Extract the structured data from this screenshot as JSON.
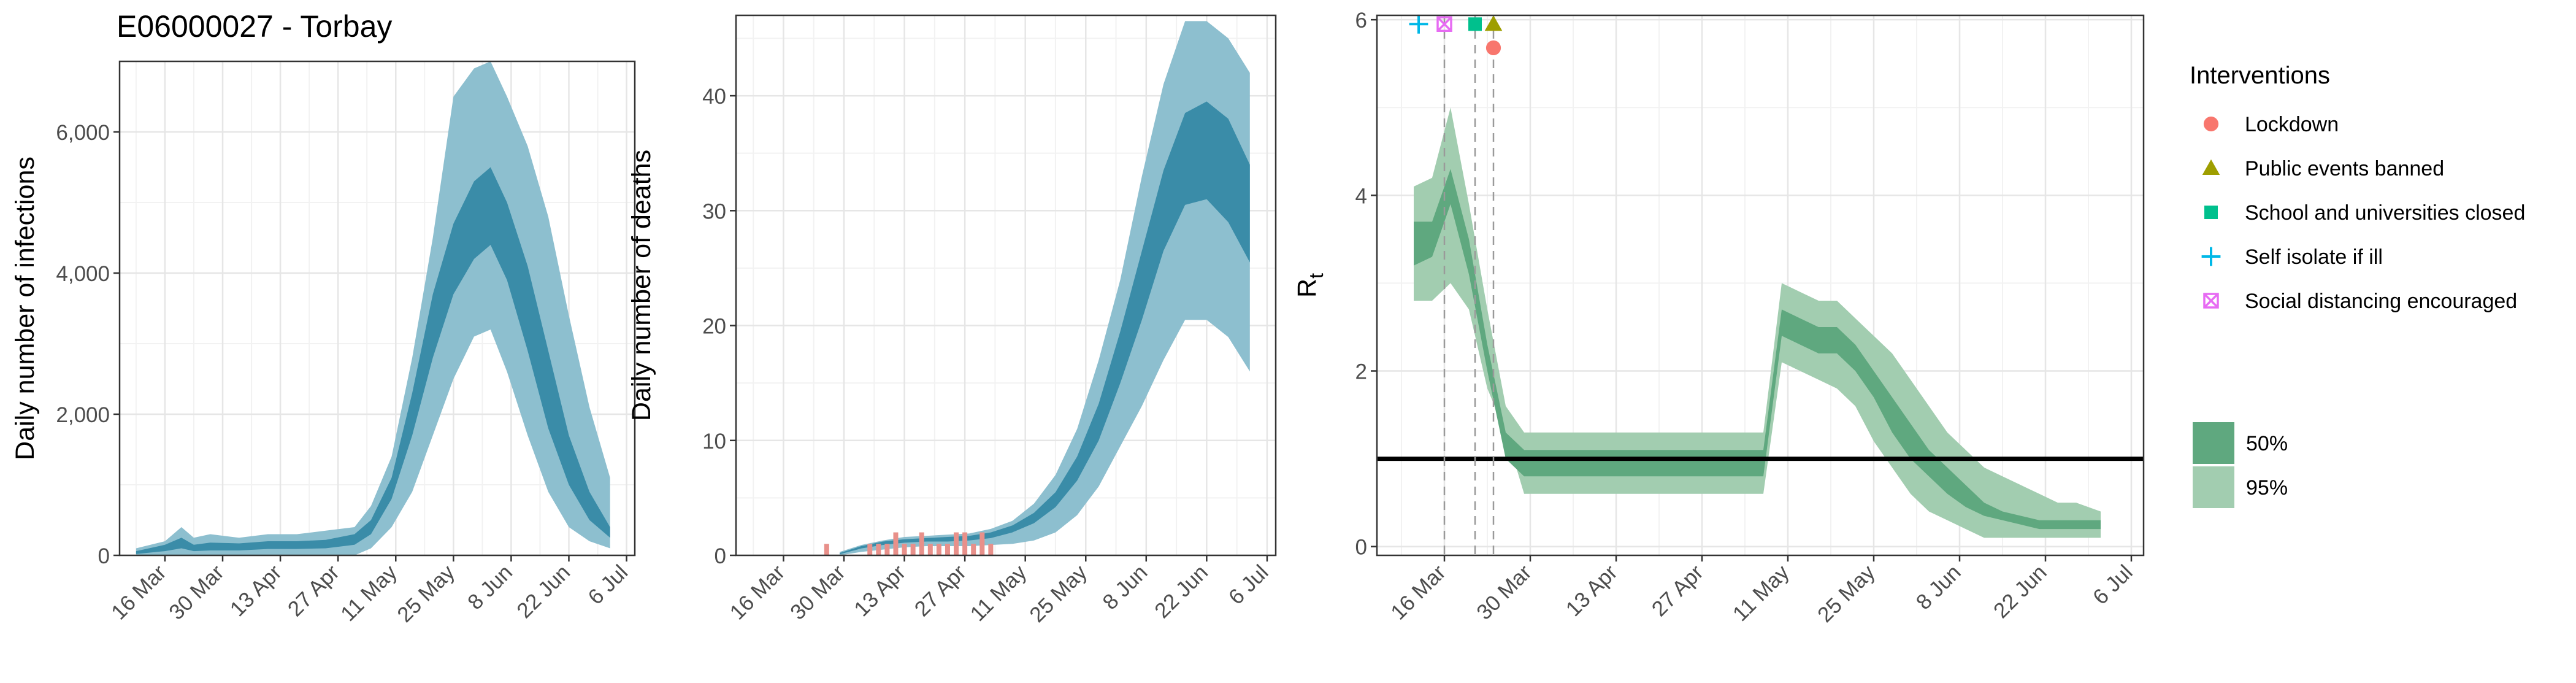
{
  "chart_data": [
    {
      "type": "area",
      "title": "E06000027 - Torbay",
      "xlabel": "",
      "ylabel": "Daily number of infections",
      "xlim": [
        "2020-03-05",
        "2020-07-08"
      ],
      "ylim": [
        0,
        7000
      ],
      "grid": true,
      "x_ticks": [
        "16 Mar",
        "30 Mar",
        "13 Apr",
        "27 Apr",
        "11 May",
        "25 May",
        "8 Jun",
        "22 Jun",
        "6 Jul"
      ],
      "y_ticks": [
        "0",
        "2,000",
        "4,000",
        "6,000"
      ],
      "x": [
        "2020-03-09",
        "2020-03-16",
        "2020-03-20",
        "2020-03-23",
        "2020-03-27",
        "2020-04-03",
        "2020-04-10",
        "2020-04-17",
        "2020-04-24",
        "2020-05-01",
        "2020-05-05",
        "2020-05-10",
        "2020-05-15",
        "2020-05-20",
        "2020-05-25",
        "2020-05-30",
        "2020-06-03",
        "2020-06-07",
        "2020-06-12",
        "2020-06-17",
        "2020-06-22",
        "2020-06-27",
        "2020-07-02"
      ],
      "series": [
        {
          "band": "95%",
          "lower": [
            0,
            0,
            0,
            0,
            0,
            0,
            0,
            0,
            0,
            0,
            100,
            400,
            900,
            1700,
            2500,
            3100,
            3200,
            2600,
            1700,
            900,
            400,
            200,
            100
          ],
          "upper": [
            100,
            200,
            400,
            250,
            300,
            250,
            300,
            300,
            350,
            400,
            700,
            1400,
            2800,
            4500,
            6500,
            6900,
            7000,
            6500,
            5800,
            4800,
            3400,
            2100,
            1100
          ]
        },
        {
          "band": "50%",
          "lower": [
            20,
            60,
            100,
            60,
            70,
            70,
            90,
            90,
            100,
            150,
            300,
            800,
            1700,
            2800,
            3700,
            4200,
            4400,
            3900,
            2900,
            1800,
            1000,
            500,
            250
          ],
          "upper": [
            60,
            150,
            250,
            150,
            180,
            170,
            200,
            200,
            220,
            300,
            500,
            1100,
            2300,
            3700,
            4700,
            5300,
            5500,
            5000,
            4100,
            2900,
            1700,
            900,
            400
          ]
        }
      ]
    },
    {
      "type": "area",
      "xlabel": "",
      "ylabel": "Daily number of deaths",
      "xlim": [
        "2020-03-05",
        "2020-07-08"
      ],
      "ylim": [
        0,
        47
      ],
      "grid": true,
      "x_ticks": [
        "16 Mar",
        "30 Mar",
        "13 Apr",
        "27 Apr",
        "11 May",
        "25 May",
        "8 Jun",
        "22 Jun",
        "6 Jul"
      ],
      "y_ticks": [
        "0",
        "10",
        "20",
        "30",
        "40"
      ],
      "x": [
        "2020-03-29",
        "2020-04-03",
        "2020-04-08",
        "2020-04-13",
        "2020-04-18",
        "2020-04-23",
        "2020-04-28",
        "2020-05-03",
        "2020-05-08",
        "2020-05-13",
        "2020-05-18",
        "2020-05-23",
        "2020-05-28",
        "2020-06-02",
        "2020-06-07",
        "2020-06-12",
        "2020-06-17",
        "2020-06-22",
        "2020-06-27",
        "2020-07-02"
      ],
      "series": [
        {
          "band": "95%",
          "lower": [
            0,
            0.3,
            0.5,
            0.7,
            0.8,
            0.8,
            0.8,
            0.9,
            1,
            1.3,
            2,
            3.5,
            6,
            9.5,
            13,
            17,
            20.5,
            20.5,
            19,
            16
          ],
          "upper": [
            0.3,
            0.9,
            1.3,
            1.6,
            1.7,
            1.8,
            1.9,
            2.3,
            3,
            4.5,
            7,
            11,
            17,
            24,
            33,
            41,
            46.5,
            46.5,
            45,
            42
          ]
        },
        {
          "band": "50%",
          "lower": [
            0.1,
            0.6,
            0.9,
            1.1,
            1.2,
            1.2,
            1.3,
            1.5,
            2,
            2.8,
            4.2,
            6.5,
            10,
            15,
            20.5,
            26.5,
            30.5,
            31,
            29,
            25.5
          ],
          "upper": [
            0.2,
            0.8,
            1.2,
            1.4,
            1.5,
            1.6,
            1.7,
            2,
            2.6,
            3.7,
            5.5,
            8.6,
            13.2,
            19.5,
            26.5,
            33.5,
            38.5,
            39.5,
            38,
            34
          ]
        }
      ],
      "observed_deaths": {
        "x": [
          "2020-03-26",
          "2020-04-05",
          "2020-04-07",
          "2020-04-09",
          "2020-04-11",
          "2020-04-13",
          "2020-04-15",
          "2020-04-17",
          "2020-04-19",
          "2020-04-21",
          "2020-04-23",
          "2020-04-25",
          "2020-04-27",
          "2020-04-29",
          "2020-05-01",
          "2020-05-03"
        ],
        "values": [
          1,
          1,
          1,
          1,
          2,
          1,
          1,
          2,
          1,
          1,
          1,
          2,
          2,
          1,
          2,
          1
        ]
      }
    },
    {
      "type": "area",
      "xlabel": "",
      "ylabel": "Rt",
      "ylabel_main": "R",
      "ylabel_sub": "t",
      "xlim": [
        "2020-03-05",
        "2020-07-08"
      ],
      "ylim": [
        -0.1,
        6.05
      ],
      "grid": true,
      "x_ticks": [
        "16 Mar",
        "30 Mar",
        "13 Apr",
        "27 Apr",
        "11 May",
        "25 May",
        "8 Jun",
        "22 Jun",
        "6 Jul"
      ],
      "y_ticks": [
        "0",
        "2",
        "4",
        "6"
      ],
      "reference_line": 1,
      "x": [
        "2020-03-11",
        "2020-03-14",
        "2020-03-17",
        "2020-03-20",
        "2020-03-23",
        "2020-03-26",
        "2020-03-29",
        "2020-04-01",
        "2020-04-04",
        "2020-04-07",
        "2020-04-10",
        "2020-04-13",
        "2020-04-16",
        "2020-04-19",
        "2020-04-22",
        "2020-04-25",
        "2020-04-28",
        "2020-05-01",
        "2020-05-04",
        "2020-05-07",
        "2020-05-10",
        "2020-05-13",
        "2020-05-16",
        "2020-05-19",
        "2020-05-22",
        "2020-05-25",
        "2020-05-28",
        "2020-05-31",
        "2020-06-03",
        "2020-06-06",
        "2020-06-09",
        "2020-06-12",
        "2020-06-15",
        "2020-06-18",
        "2020-06-21",
        "2020-06-24",
        "2020-06-27",
        "2020-07-01"
      ],
      "series": [
        {
          "band": "95%",
          "lower": [
            2.8,
            2.8,
            3.0,
            2.7,
            1.8,
            1.3,
            0.6,
            0.6,
            0.6,
            0.6,
            0.6,
            0.6,
            0.6,
            0.6,
            0.6,
            0.6,
            0.6,
            0.6,
            0.6,
            0.6,
            2.1,
            2.0,
            1.9,
            1.8,
            1.6,
            1.2,
            0.9,
            0.6,
            0.4,
            0.3,
            0.2,
            0.1,
            0.1,
            0.1,
            0.1,
            0.1,
            0.1,
            0.1
          ],
          "upper": [
            4.1,
            4.2,
            5.0,
            3.9,
            2.7,
            1.6,
            1.3,
            1.3,
            1.3,
            1.3,
            1.3,
            1.3,
            1.3,
            1.3,
            1.3,
            1.3,
            1.3,
            1.3,
            1.3,
            1.3,
            3.0,
            2.9,
            2.8,
            2.8,
            2.6,
            2.4,
            2.2,
            1.9,
            1.6,
            1.3,
            1.1,
            0.9,
            0.8,
            0.7,
            0.6,
            0.5,
            0.5,
            0.4
          ]
        },
        {
          "band": "50%",
          "lower": [
            3.2,
            3.3,
            3.9,
            3.1,
            2.0,
            1.0,
            0.8,
            0.8,
            0.8,
            0.8,
            0.8,
            0.8,
            0.8,
            0.8,
            0.8,
            0.8,
            0.8,
            0.8,
            0.8,
            0.8,
            2.4,
            2.3,
            2.2,
            2.2,
            2.0,
            1.7,
            1.3,
            1.0,
            0.8,
            0.6,
            0.45,
            0.35,
            0.3,
            0.25,
            0.2,
            0.2,
            0.2,
            0.2
          ],
          "upper": [
            3.7,
            3.7,
            4.3,
            3.5,
            2.3,
            1.3,
            1.1,
            1.1,
            1.1,
            1.1,
            1.1,
            1.1,
            1.1,
            1.1,
            1.1,
            1.1,
            1.1,
            1.1,
            1.1,
            1.1,
            2.7,
            2.6,
            2.5,
            2.5,
            2.3,
            2.0,
            1.7,
            1.4,
            1.1,
            0.9,
            0.7,
            0.5,
            0.4,
            0.35,
            0.3,
            0.3,
            0.3,
            0.3
          ]
        }
      ],
      "interventions": [
        {
          "date": "2020-03-16",
          "name": "Self isolate if ill",
          "color": "#00B8E7",
          "shape": "plus"
        },
        {
          "date": "2020-03-16",
          "name": "Social distancing encouraged",
          "color": "#E76BF3",
          "shape": "square-cross"
        },
        {
          "date": "2020-03-21",
          "name": "School and universities closed",
          "color": "#00C08D",
          "shape": "square"
        },
        {
          "date": "2020-03-24",
          "name": "Public events banned",
          "color": "#9E9E00",
          "shape": "triangle"
        },
        {
          "date": "2020-03-24",
          "name": "Lockdown",
          "color": "#F8766D",
          "shape": "circle"
        }
      ]
    }
  ],
  "legend": {
    "interventions_title": "Interventions",
    "interventions": [
      {
        "name": "Lockdown",
        "color": "#F8766D",
        "shape": "circle"
      },
      {
        "name": "Public events banned",
        "color": "#9E9E00",
        "shape": "triangle"
      },
      {
        "name": "School and universities closed",
        "color": "#00C08D",
        "shape": "square"
      },
      {
        "name": "Self isolate if ill",
        "color": "#00B8E7",
        "shape": "plus"
      },
      {
        "name": "Social distancing encouraged",
        "color": "#E76BF3",
        "shape": "square-cross"
      }
    ],
    "bands": [
      {
        "label": "50%",
        "color": "#5fa87f"
      },
      {
        "label": "95%",
        "color": "#a2cdb0"
      }
    ]
  },
  "colors": {
    "infection_band_95": "#8dbfcf",
    "infection_band_50": "#3a8ca8",
    "rt_band_95": "#a2cdb0",
    "rt_band_50": "#5fa87f",
    "observed_deaths": "#e8908a",
    "reference_line": "#000000"
  }
}
